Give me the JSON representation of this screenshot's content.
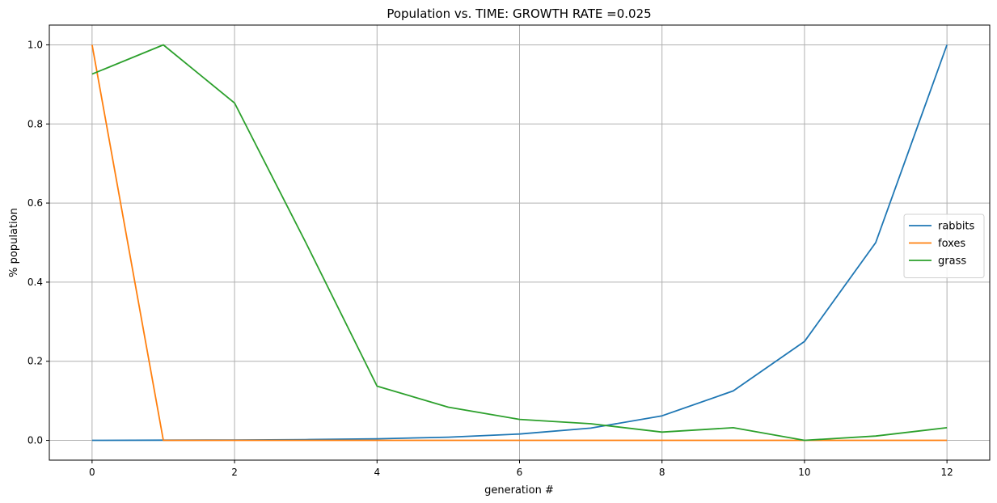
{
  "chart_data": {
    "type": "line",
    "title": "Population vs. TIME: GROWTH RATE =0.025",
    "xlabel": "generation #",
    "ylabel": "% population",
    "xlim": [
      -0.6,
      12.6
    ],
    "ylim": [
      -0.05,
      1.05
    ],
    "xticks": [
      0,
      2,
      4,
      6,
      8,
      10,
      12
    ],
    "yticks": [
      0.0,
      0.2,
      0.4,
      0.6,
      0.8,
      1.0
    ],
    "grid": true,
    "legend_position": "center-right",
    "x": [
      0,
      1,
      2,
      3,
      4,
      5,
      6,
      7,
      8,
      9,
      10,
      11,
      12
    ],
    "series": [
      {
        "name": "rabbits",
        "color": "#1f77b4",
        "values": [
          0.0,
          0.0005,
          0.001,
          0.002,
          0.004,
          0.008,
          0.016,
          0.031,
          0.062,
          0.125,
          0.25,
          0.5,
          1.0
        ]
      },
      {
        "name": "foxes",
        "color": "#ff7f0e",
        "values": [
          1.0,
          0.0,
          0.0,
          0.0,
          0.0,
          0.0,
          0.0,
          0.0,
          0.0,
          0.0,
          0.0,
          0.0,
          0.0
        ]
      },
      {
        "name": "grass",
        "color": "#2ca02c",
        "values": [
          0.926,
          1.0,
          0.853,
          0.5,
          0.137,
          0.084,
          0.053,
          0.042,
          0.021,
          0.032,
          0.0,
          0.011,
          0.032
        ]
      }
    ]
  }
}
